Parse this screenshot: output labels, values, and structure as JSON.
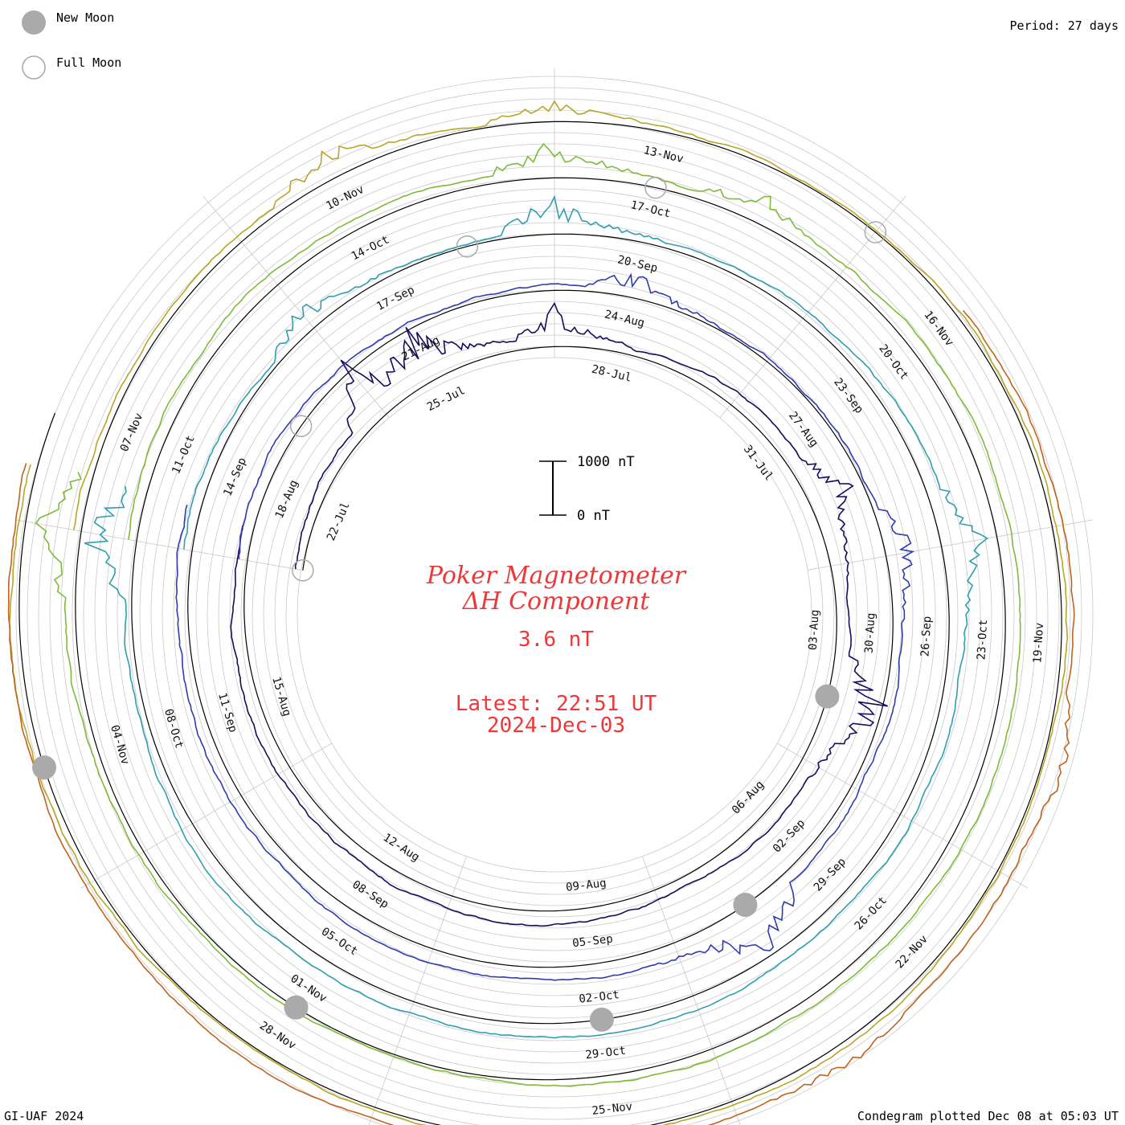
{
  "legend": {
    "new_moon": "New Moon",
    "full_moon": "Full Moon",
    "new_moon_color": "#aaaaaa",
    "full_moon_color": "#aaaaaa"
  },
  "period": "Period: 27 days",
  "credit": "GI-UAF 2024",
  "plotted": "Condegram plotted Dec 08 at 05:03 UT",
  "title": {
    "line1": "Poker Magnetometer",
    "line2": "ΔH Component",
    "value": "3.6 nT",
    "latest": "Latest: 22:51 UT",
    "date": "2024-Dec-03",
    "color": "#ee3838"
  },
  "scale": {
    "top_label": "1000 nT",
    "bottom_label": "0 nT",
    "nT_range": [
      0,
      1000
    ]
  },
  "chart_data": {
    "type": "line",
    "subtype": "polar condegram (spiral time series)",
    "period_days": 27,
    "start_date": "2024-07-21",
    "end_date": "2024-12-03",
    "quantity": "ΔH Component",
    "units": "nT",
    "series": [
      {
        "color": "#1a0b5e",
        "start": "21-Jul",
        "end": "17-Aug",
        "spikes": [
          {
            "date": "24-Jul",
            "nT": 900
          },
          {
            "date": "25-Jul",
            "nT": 800
          },
          {
            "date": "27-Jul",
            "nT": 500
          },
          {
            "date": "01-Aug",
            "nT": 550
          },
          {
            "date": "04-Aug",
            "nT": 950
          }
        ]
      },
      {
        "color": "#2e3cad",
        "start": "17-Aug",
        "end": "13-Sep",
        "spikes": [
          {
            "date": "24-Aug",
            "nT": 400
          },
          {
            "date": "29-Aug",
            "nT": 500
          },
          {
            "date": "03-Sep",
            "nT": 950
          }
        ]
      },
      {
        "color": "#2f9fb0",
        "start": "13-Sep",
        "end": "10-Oct",
        "spikes": [
          {
            "date": "16-Sep",
            "nT": 450
          },
          {
            "date": "19-Sep",
            "nT": 600
          },
          {
            "date": "25-Sep",
            "nT": 500
          },
          {
            "date": "10-Oct",
            "nT": 900
          }
        ]
      },
      {
        "color": "#7dbb38",
        "start": "10-Oct",
        "end": "06-Nov",
        "spikes": [
          {
            "date": "16-Oct",
            "nT": 500
          },
          {
            "date": "18-Oct",
            "nT": 350
          },
          {
            "date": "06-Nov",
            "nT": 600
          }
        ]
      },
      {
        "color": "#b8a628",
        "start": "06-Nov",
        "end": "03-Dec",
        "spikes": [
          {
            "date": "10-Nov",
            "nT": 400
          },
          {
            "date": "12-Nov",
            "nT": 300
          }
        ]
      },
      {
        "color": "#c0631e",
        "start": "16-Nov",
        "end": "03-Dec",
        "spikes": [
          {
            "date": "20-Nov",
            "nT": 250
          },
          {
            "date": "23-Nov",
            "nT": 200
          }
        ]
      }
    ],
    "date_labels": [
      "22-Jul",
      "25-Jul",
      "28-Jul",
      "31-Jul",
      "03-Aug",
      "06-Aug",
      "09-Aug",
      "12-Aug",
      "15-Aug",
      "18-Aug",
      "21-Aug",
      "24-Aug",
      "27-Aug",
      "30-Aug",
      "02-Sep",
      "05-Sep",
      "08-Sep",
      "11-Sep",
      "14-Sep",
      "17-Sep",
      "20-Sep",
      "23-Sep",
      "26-Sep",
      "29-Sep",
      "02-Oct",
      "05-Oct",
      "08-Oct",
      "11-Oct",
      "14-Oct",
      "17-Oct",
      "20-Oct",
      "23-Oct",
      "26-Oct",
      "29-Oct",
      "01-Nov",
      "04-Nov",
      "07-Nov",
      "10-Nov",
      "13-Nov",
      "16-Nov",
      "19-Nov",
      "22-Nov",
      "25-Nov",
      "28-Nov"
    ],
    "moon_phases": [
      {
        "type": "full",
        "date": "21-Jul"
      },
      {
        "type": "new",
        "date": "04-Aug"
      },
      {
        "type": "full",
        "date": "19-Aug"
      },
      {
        "type": "new",
        "date": "03-Sep"
      },
      {
        "type": "full",
        "date": "18-Sep"
      },
      {
        "type": "new",
        "date": "02-Oct"
      },
      {
        "type": "full",
        "date": "17-Oct"
      },
      {
        "type": "new",
        "date": "01-Nov"
      },
      {
        "type": "full",
        "date": "15-Nov"
      },
      {
        "type": "new",
        "date": "01-Dec"
      }
    ]
  }
}
